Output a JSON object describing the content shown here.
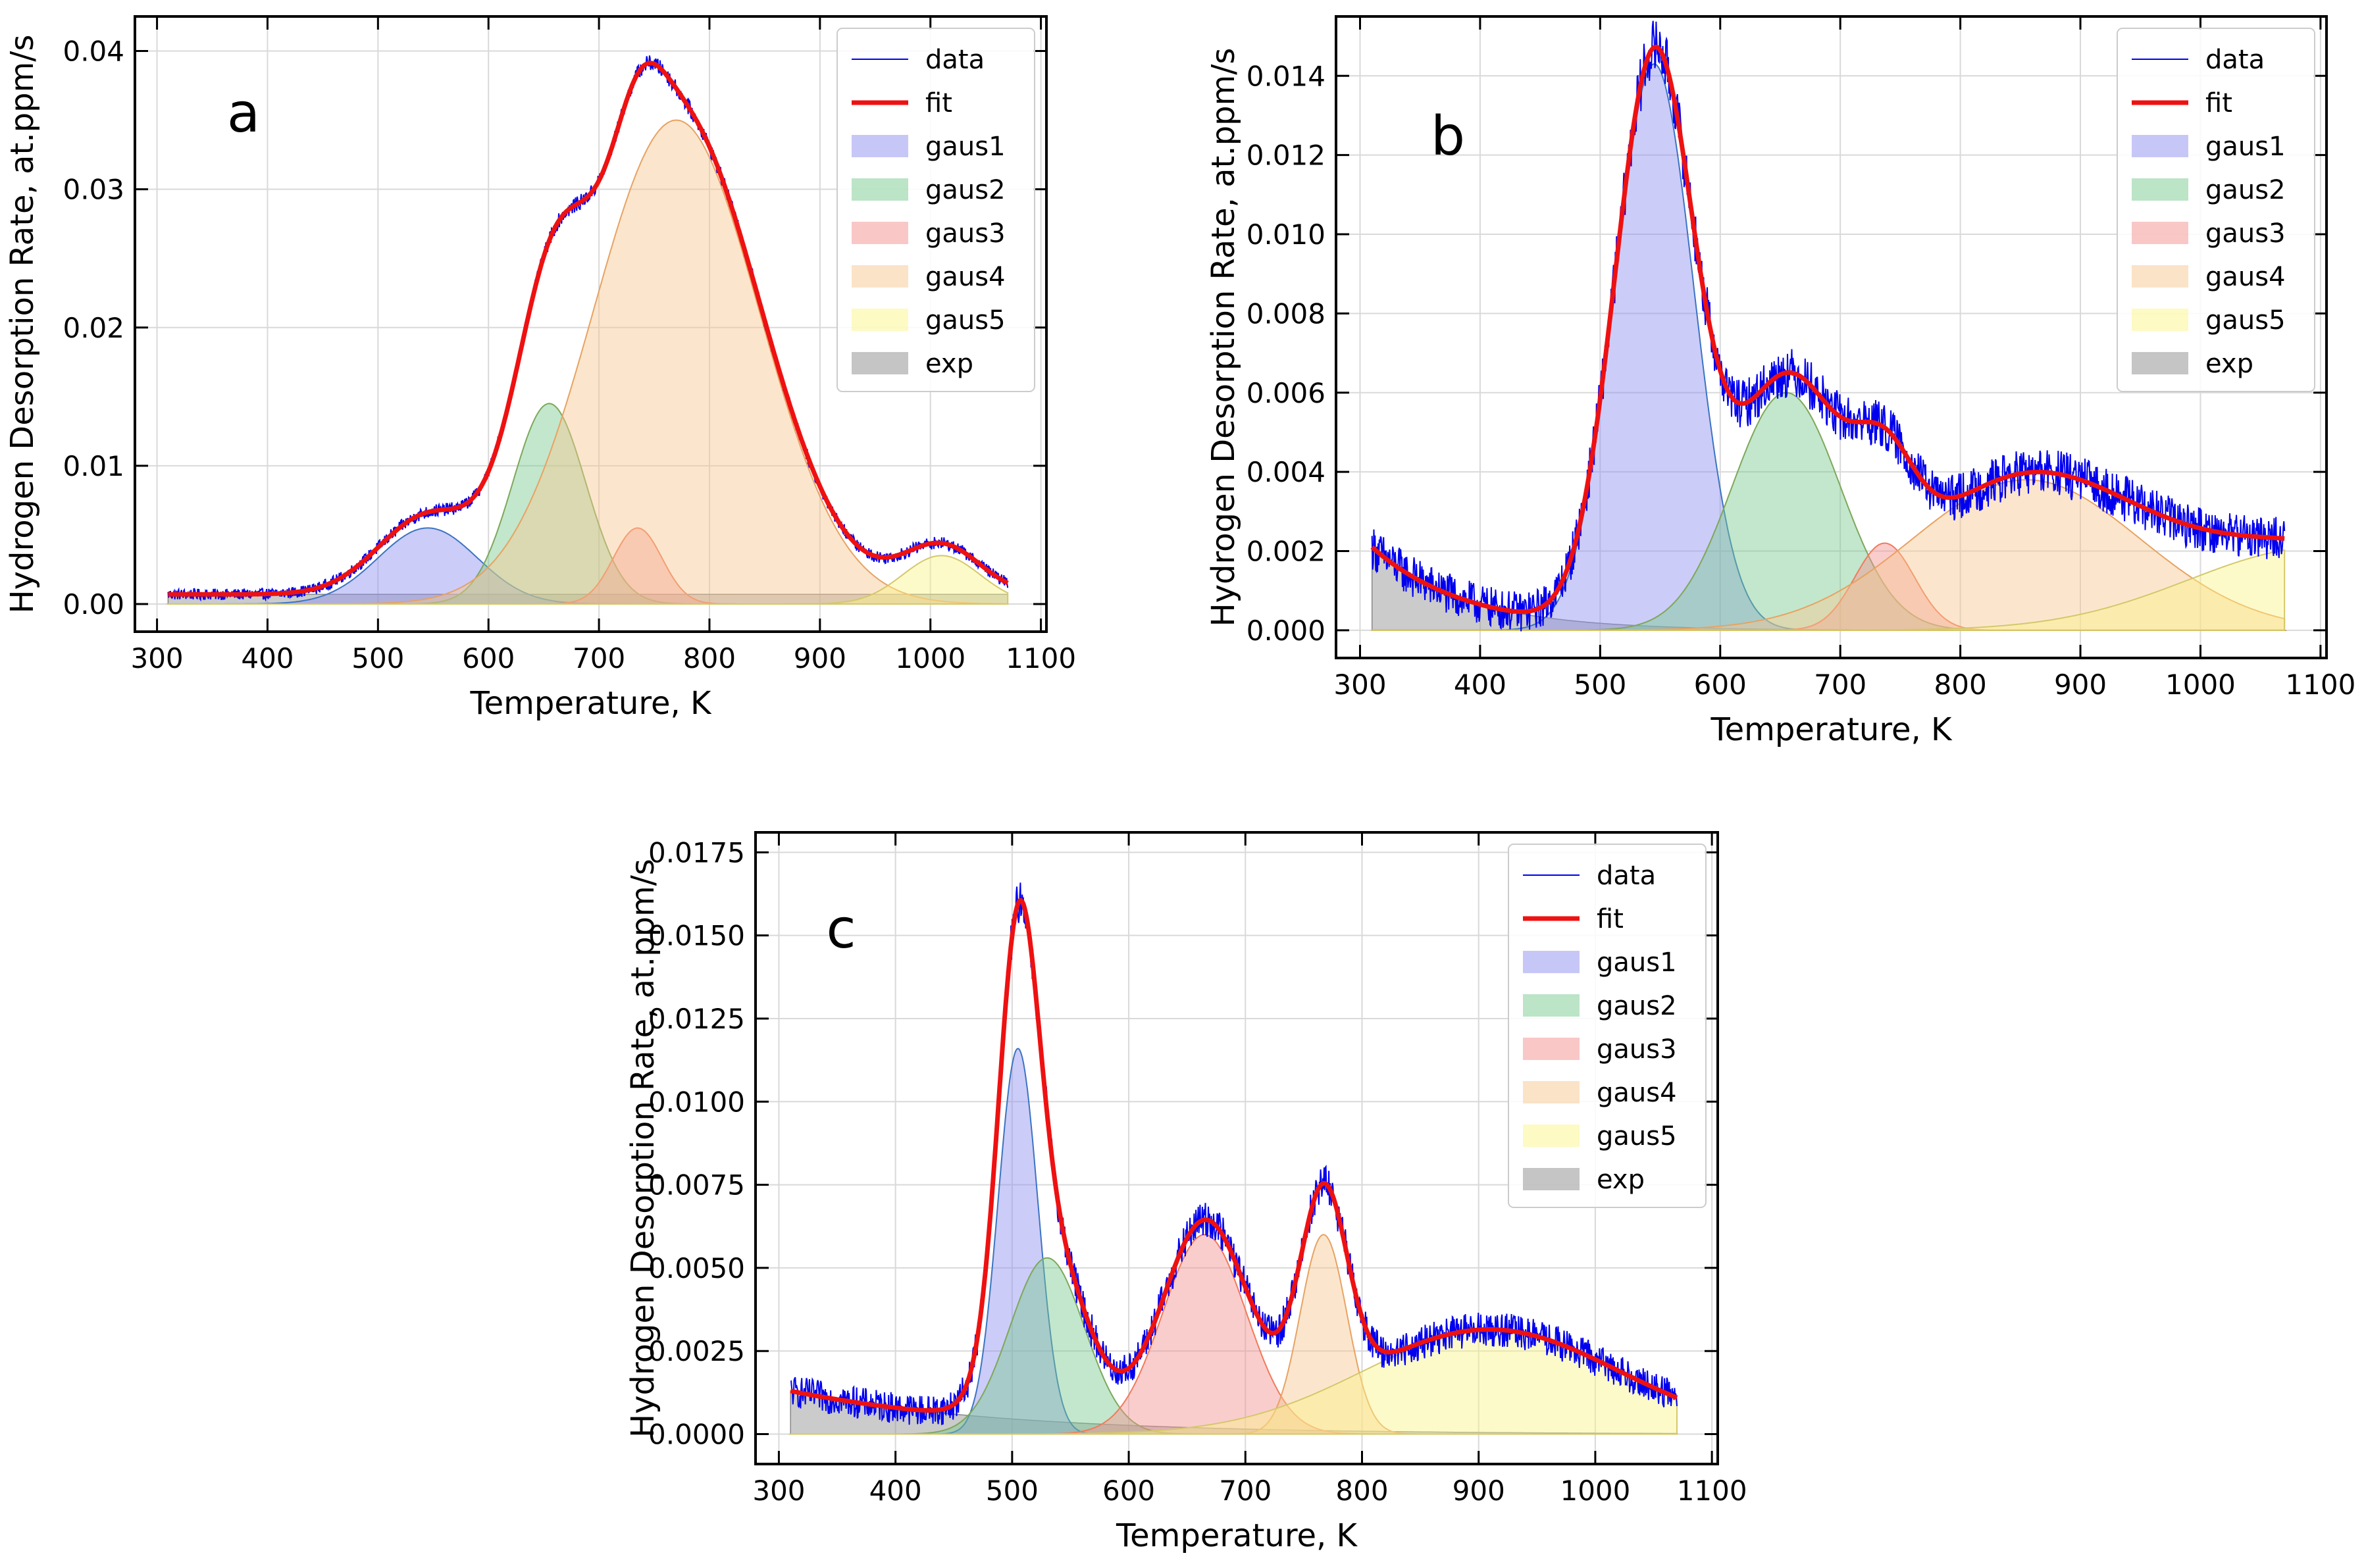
{
  "figure": {
    "panels": [
      "a",
      "b",
      "c"
    ]
  },
  "chart_data": [
    {
      "panel": "a",
      "type": "line",
      "title": "",
      "xlabel": "Temperature, K",
      "ylabel": "Hydrogen Desorption Rate, at.ppm/s",
      "xlim": [
        280,
        1105
      ],
      "ylim": [
        -0.002,
        0.0425
      ],
      "x_range": [
        310,
        1070
      ],
      "xticks": [
        300,
        400,
        500,
        600,
        700,
        800,
        900,
        1000,
        1100
      ],
      "yticks": [
        0.0,
        0.01,
        0.02,
        0.03,
        0.04
      ],
      "ytick_labels": [
        "0.00",
        "0.01",
        "0.02",
        "0.03",
        "0.04"
      ],
      "grid": true,
      "legend_position": "top-right",
      "legend": [
        "data",
        "fit",
        "gaus1",
        "gaus2",
        "gaus3",
        "gaus4",
        "gaus5",
        "exp"
      ],
      "noise_amplitude": 0.00045,
      "exp_component": {
        "a": 0.0007,
        "decay_k": 0
      },
      "gaussians": [
        {
          "name": "gaus1",
          "amplitude": 0.0055,
          "center": 545,
          "sigma": 45
        },
        {
          "name": "gaus2",
          "amplitude": 0.0145,
          "center": 655,
          "sigma": 33
        },
        {
          "name": "gaus3",
          "amplitude": 0.0055,
          "center": 735,
          "sigma": 22
        },
        {
          "name": "gaus4",
          "amplitude": 0.035,
          "center": 770,
          "sigma": 75
        },
        {
          "name": "gaus5",
          "amplitude": 0.0035,
          "center": 1010,
          "sigma": 35
        }
      ]
    },
    {
      "panel": "b",
      "type": "line",
      "title": "",
      "xlabel": "Temperature, K",
      "ylabel": "Hydrogen Desorption Rate, at.ppm/s",
      "xlim": [
        280,
        1105
      ],
      "ylim": [
        -0.0007,
        0.0155
      ],
      "x_range": [
        310,
        1070
      ],
      "xticks": [
        300,
        400,
        500,
        600,
        700,
        800,
        900,
        1000,
        1100
      ],
      "yticks": [
        0.0,
        0.002,
        0.004,
        0.006,
        0.008,
        0.01,
        0.012,
        0.014
      ],
      "ytick_labels": [
        "0.000",
        "0.002",
        "0.004",
        "0.006",
        "0.008",
        "0.010",
        "0.012",
        "0.014"
      ],
      "grid": true,
      "legend_position": "top-right",
      "legend": [
        "data",
        "fit",
        "gaus1",
        "gaus2",
        "gaus3",
        "gaus4",
        "gaus5",
        "exp"
      ],
      "noise_amplitude": 0.00055,
      "exp_component": {
        "a": 0.0021,
        "decay_k": 0.013
      },
      "gaussians": [
        {
          "name": "gaus1",
          "amplitude": 0.0143,
          "center": 545,
          "sigma": 33
        },
        {
          "name": "gaus2",
          "amplitude": 0.006,
          "center": 655,
          "sigma": 45
        },
        {
          "name": "gaus3",
          "amplitude": 0.0022,
          "center": 737,
          "sigma": 25
        },
        {
          "name": "gaus4",
          "amplitude": 0.0038,
          "center": 855,
          "sigma": 95
        },
        {
          "name": "gaus5",
          "amplitude": 0.0021,
          "center": 1100,
          "sigma": 110
        }
      ]
    },
    {
      "panel": "c",
      "type": "line",
      "title": "",
      "xlabel": "Temperature, K",
      "ylabel": "Hydrogen Desorption Rate, at.ppm/s",
      "xlim": [
        280,
        1105
      ],
      "ylim": [
        -0.0009,
        0.0181
      ],
      "x_range": [
        310,
        1070
      ],
      "xticks": [
        300,
        400,
        500,
        600,
        700,
        800,
        900,
        1000,
        1100
      ],
      "yticks": [
        0.0,
        0.0025,
        0.005,
        0.0075,
        0.01,
        0.0125,
        0.015,
        0.0175
      ],
      "ytick_labels": [
        "0.0000",
        "0.0025",
        "0.0050",
        "0.0075",
        "0.0100",
        "0.0125",
        "0.0150",
        "0.0175"
      ],
      "grid": true,
      "legend_position": "top-right",
      "legend": [
        "data",
        "fit",
        "gaus1",
        "gaus2",
        "gaus3",
        "gaus4",
        "gaus5",
        "exp"
      ],
      "noise_amplitude": 0.0005,
      "exp_component": {
        "a": 0.0013,
        "decay_k": 0.0055
      },
      "gaussians": [
        {
          "name": "gaus1",
          "amplitude": 0.0116,
          "center": 505,
          "sigma": 17
        },
        {
          "name": "gaus2",
          "amplitude": 0.0053,
          "center": 530,
          "sigma": 32
        },
        {
          "name": "gaus3",
          "amplitude": 0.006,
          "center": 665,
          "sigma": 36
        },
        {
          "name": "gaus4",
          "amplitude": 0.006,
          "center": 767,
          "sigma": 20
        },
        {
          "name": "gaus5",
          "amplitude": 0.0031,
          "center": 910,
          "sigma": 110
        }
      ]
    }
  ],
  "colors": {
    "data": "#0000ee",
    "fit": "#ee1111",
    "gaus1": "#8f8ff0",
    "gaus2": "#79c98f",
    "gaus3": "#f59090",
    "gaus4": "#f7c890",
    "gaus5": "#fbf58a",
    "exp": "#8c8c8c",
    "gaus1_edge": "#3b74c2",
    "gaus2_edge": "#7da85a",
    "gaus3_edge": "#f27a5a",
    "gaus4_edge": "#e8a262",
    "gaus5_edge": "#d4c86a",
    "exp_edge": "#888888"
  }
}
